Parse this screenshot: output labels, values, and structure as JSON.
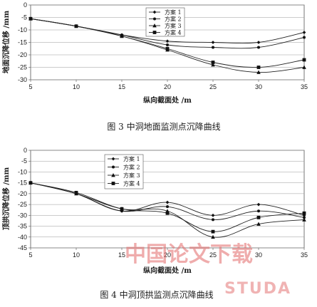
{
  "chart_data": [
    {
      "type": "line",
      "caption": "图 3   中洞地面监测点沉降曲线",
      "xlabel": "纵向截面处 /m",
      "ylabel": "地面沉降位移 /mm",
      "x": [
        5,
        10,
        15,
        20,
        25,
        30,
        35
      ],
      "xlim": [
        5,
        35
      ],
      "ylim": [
        -30,
        0
      ],
      "xticks": [
        5,
        10,
        15,
        20,
        25,
        30,
        35
      ],
      "yticks": [
        0,
        -5,
        -10,
        -15,
        -20,
        -25,
        -30
      ],
      "grid": true,
      "legend_position": "top-right",
      "series": [
        {
          "name": "方案 1",
          "marker": "diamond",
          "values": [
            -5.5,
            -8.5,
            -12,
            -14.5,
            -15,
            -15,
            -11
          ]
        },
        {
          "name": "方案 2",
          "marker": "dot",
          "values": [
            -5.5,
            -8.5,
            -12,
            -16,
            -17,
            -17,
            -13
          ]
        },
        {
          "name": "方案 3",
          "marker": "triangle",
          "values": [
            -5.5,
            -8.5,
            -12.5,
            -18,
            -24,
            -27,
            -25
          ]
        },
        {
          "name": "方案 4",
          "marker": "square",
          "values": [
            -5.5,
            -8.5,
            -12.5,
            -17.5,
            -23,
            -25,
            -22
          ]
        }
      ]
    },
    {
      "type": "line",
      "caption": "图 4   中洞顶拱监测点沉降曲线",
      "xlabel": "纵向截面处 /m",
      "ylabel": "顶拱沉降位移 /mm",
      "x": [
        5,
        10,
        15,
        20,
        25,
        30,
        35
      ],
      "xlim": [
        5,
        35
      ],
      "ylim": [
        -45,
        0
      ],
      "xticks": [
        5,
        10,
        15,
        20,
        25,
        30,
        35
      ],
      "yticks": [
        0,
        -5,
        -10,
        -15,
        -20,
        -25,
        -30,
        -35,
        -40,
        -45
      ],
      "grid": true,
      "legend_position": "top-left",
      "series": [
        {
          "name": "方案 1",
          "marker": "diamond",
          "values": [
            -15,
            -20,
            -28,
            -24,
            -30,
            -25,
            -30
          ]
        },
        {
          "name": "方案 2",
          "marker": "dot",
          "values": [
            -15,
            -20,
            -28,
            -26,
            -32,
            -28,
            -31
          ]
        },
        {
          "name": "方案 3",
          "marker": "triangle",
          "values": [
            -15,
            -20,
            -27,
            -28,
            -40,
            -34,
            -32
          ]
        },
        {
          "name": "方案 4",
          "marker": "square",
          "values": [
            -15,
            -19.5,
            -27,
            -29,
            -37.5,
            -31,
            -29
          ]
        }
      ]
    }
  ],
  "watermark": {
    "cn": "中国论文下载",
    "en": "STUDA"
  }
}
